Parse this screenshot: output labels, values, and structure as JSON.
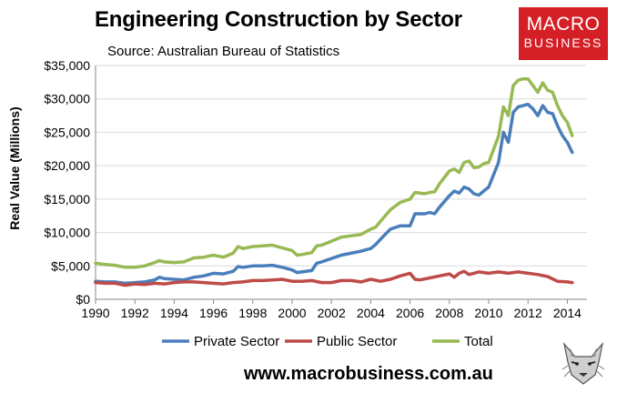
{
  "brand": {
    "logo_line1": "MACRO",
    "logo_line2": "BUSINESS",
    "url": "www.macrobusiness.com.au"
  },
  "colors": {
    "private": "#4a7ebb",
    "public": "#be4b48",
    "total": "#98b954",
    "logo_red": "#d41f27"
  },
  "chart_data": {
    "type": "line",
    "title": "Engineering Construction by Sector",
    "subtitle": "Source: Australian Bureau of Statistics",
    "xlabel": "",
    "ylabel": "Real Value (Millions)",
    "xlim": [
      1990,
      2015
    ],
    "ylim": [
      0,
      35000
    ],
    "x_ticks": [
      "1990",
      "1992",
      "1994",
      "1996",
      "1998",
      "2000",
      "2002",
      "2004",
      "2006",
      "2008",
      "2010",
      "2012",
      "2014"
    ],
    "y_ticks": [
      "$0",
      "$5,000",
      "$10,000",
      "$15,000",
      "$20,000",
      "$25,000",
      "$30,000",
      "$35,000"
    ],
    "grid": "horizontal",
    "legend": "bottom",
    "series": [
      {
        "name": "Private Sector",
        "color": "#4a7ebb",
        "points": [
          [
            1990,
            2700
          ],
          [
            1990.5,
            2600
          ],
          [
            1991,
            2600
          ],
          [
            1991.5,
            2400
          ],
          [
            1992,
            2500
          ],
          [
            1992.5,
            2600
          ],
          [
            1993,
            2900
          ],
          [
            1993.25,
            3300
          ],
          [
            1993.5,
            3100
          ],
          [
            1994,
            3000
          ],
          [
            1994.5,
            2900
          ],
          [
            1995,
            3300
          ],
          [
            1995.5,
            3500
          ],
          [
            1996,
            3900
          ],
          [
            1996.5,
            3800
          ],
          [
            1997,
            4200
          ],
          [
            1997.25,
            4900
          ],
          [
            1997.5,
            4800
          ],
          [
            1998,
            5000
          ],
          [
            1998.5,
            5000
          ],
          [
            1999,
            5100
          ],
          [
            1999.5,
            4800
          ],
          [
            2000,
            4400
          ],
          [
            2000.25,
            4000
          ],
          [
            2000.5,
            4100
          ],
          [
            2001,
            4300
          ],
          [
            2001.25,
            5400
          ],
          [
            2001.5,
            5600
          ],
          [
            2002,
            6100
          ],
          [
            2002.5,
            6600
          ],
          [
            2003,
            6900
          ],
          [
            2003.5,
            7200
          ],
          [
            2004,
            7600
          ],
          [
            2004.25,
            8200
          ],
          [
            2004.5,
            9000
          ],
          [
            2005,
            10500
          ],
          [
            2005.5,
            11000
          ],
          [
            2006,
            11000
          ],
          [
            2006.25,
            12800
          ],
          [
            2006.75,
            12800
          ],
          [
            2007,
            13000
          ],
          [
            2007.25,
            12800
          ],
          [
            2007.5,
            13800
          ],
          [
            2008,
            15500
          ],
          [
            2008.25,
            16200
          ],
          [
            2008.5,
            15900
          ],
          [
            2008.75,
            16800
          ],
          [
            2009,
            16500
          ],
          [
            2009.25,
            15800
          ],
          [
            2009.5,
            15600
          ],
          [
            2009.75,
            16200
          ],
          [
            2010,
            16800
          ],
          [
            2010.5,
            20500
          ],
          [
            2010.75,
            25000
          ],
          [
            2011,
            23500
          ],
          [
            2011.25,
            28000
          ],
          [
            2011.5,
            28800
          ],
          [
            2011.75,
            29000
          ],
          [
            2012,
            29200
          ],
          [
            2012.25,
            28500
          ],
          [
            2012.5,
            27500
          ],
          [
            2012.75,
            29000
          ],
          [
            2013,
            28000
          ],
          [
            2013.25,
            27800
          ],
          [
            2013.5,
            26000
          ],
          [
            2013.75,
            24500
          ],
          [
            2014,
            23500
          ],
          [
            2014.25,
            22000
          ]
        ]
      },
      {
        "name": "Public Sector",
        "color": "#be4b48",
        "points": [
          [
            1990,
            2500
          ],
          [
            1990.5,
            2400
          ],
          [
            1991,
            2400
          ],
          [
            1991.5,
            2100
          ],
          [
            1992,
            2300
          ],
          [
            1992.5,
            2200
          ],
          [
            1993,
            2400
          ],
          [
            1993.5,
            2300
          ],
          [
            1994,
            2500
          ],
          [
            1994.5,
            2600
          ],
          [
            1995,
            2600
          ],
          [
            1995.5,
            2500
          ],
          [
            1996,
            2400
          ],
          [
            1996.5,
            2300
          ],
          [
            1997,
            2500
          ],
          [
            1997.5,
            2600
          ],
          [
            1998,
            2800
          ],
          [
            1998.5,
            2800
          ],
          [
            1999,
            2900
          ],
          [
            1999.5,
            3000
          ],
          [
            2000,
            2700
          ],
          [
            2000.5,
            2700
          ],
          [
            2001,
            2800
          ],
          [
            2001.5,
            2500
          ],
          [
            2002,
            2500
          ],
          [
            2002.5,
            2800
          ],
          [
            2003,
            2800
          ],
          [
            2003.5,
            2600
          ],
          [
            2004,
            3000
          ],
          [
            2004.5,
            2700
          ],
          [
            2005,
            3000
          ],
          [
            2005.5,
            3500
          ],
          [
            2006,
            3900
          ],
          [
            2006.25,
            3000
          ],
          [
            2006.5,
            2900
          ],
          [
            2007,
            3200
          ],
          [
            2007.5,
            3500
          ],
          [
            2008,
            3800
          ],
          [
            2008.25,
            3300
          ],
          [
            2008.5,
            3900
          ],
          [
            2008.75,
            4200
          ],
          [
            2009,
            3700
          ],
          [
            2009.5,
            4100
          ],
          [
            2010,
            3900
          ],
          [
            2010.5,
            4100
          ],
          [
            2011,
            3900
          ],
          [
            2011.5,
            4100
          ],
          [
            2012,
            3900
          ],
          [
            2012.5,
            3700
          ],
          [
            2013,
            3400
          ],
          [
            2013.5,
            2700
          ],
          [
            2014,
            2600
          ],
          [
            2014.25,
            2500
          ]
        ]
      },
      {
        "name": "Total",
        "color": "#98b954",
        "points": [
          [
            1990,
            5400
          ],
          [
            1990.5,
            5200
          ],
          [
            1991,
            5100
          ],
          [
            1991.5,
            4800
          ],
          [
            1992,
            4800
          ],
          [
            1992.5,
            5000
          ],
          [
            1993,
            5500
          ],
          [
            1993.25,
            5800
          ],
          [
            1993.5,
            5600
          ],
          [
            1994,
            5500
          ],
          [
            1994.5,
            5600
          ],
          [
            1995,
            6200
          ],
          [
            1995.5,
            6300
          ],
          [
            1996,
            6600
          ],
          [
            1996.5,
            6300
          ],
          [
            1997,
            6900
          ],
          [
            1997.25,
            7900
          ],
          [
            1997.5,
            7600
          ],
          [
            1998,
            7900
          ],
          [
            1998.5,
            8000
          ],
          [
            1999,
            8100
          ],
          [
            1999.5,
            7700
          ],
          [
            2000,
            7300
          ],
          [
            2000.25,
            6600
          ],
          [
            2000.5,
            6700
          ],
          [
            2001,
            7000
          ],
          [
            2001.25,
            8000
          ],
          [
            2001.5,
            8100
          ],
          [
            2002,
            8700
          ],
          [
            2002.5,
            9300
          ],
          [
            2003,
            9500
          ],
          [
            2003.5,
            9700
          ],
          [
            2004,
            10500
          ],
          [
            2004.25,
            10800
          ],
          [
            2004.5,
            11700
          ],
          [
            2005,
            13400
          ],
          [
            2005.5,
            14500
          ],
          [
            2006,
            15000
          ],
          [
            2006.25,
            16000
          ],
          [
            2006.75,
            15800
          ],
          [
            2007,
            16000
          ],
          [
            2007.25,
            16100
          ],
          [
            2007.5,
            17300
          ],
          [
            2008,
            19200
          ],
          [
            2008.25,
            19500
          ],
          [
            2008.5,
            19000
          ],
          [
            2008.75,
            20500
          ],
          [
            2009,
            20700
          ],
          [
            2009.25,
            19700
          ],
          [
            2009.5,
            19800
          ],
          [
            2009.75,
            20300
          ],
          [
            2010,
            20500
          ],
          [
            2010.5,
            24400
          ],
          [
            2010.75,
            28800
          ],
          [
            2011,
            27500
          ],
          [
            2011.25,
            32000
          ],
          [
            2011.5,
            32800
          ],
          [
            2011.75,
            33000
          ],
          [
            2012,
            33000
          ],
          [
            2012.25,
            32000
          ],
          [
            2012.5,
            31000
          ],
          [
            2012.75,
            32400
          ],
          [
            2013,
            31300
          ],
          [
            2013.25,
            31000
          ],
          [
            2013.5,
            29000
          ],
          [
            2013.75,
            27500
          ],
          [
            2014,
            26500
          ],
          [
            2014.25,
            24500
          ]
        ]
      }
    ]
  }
}
